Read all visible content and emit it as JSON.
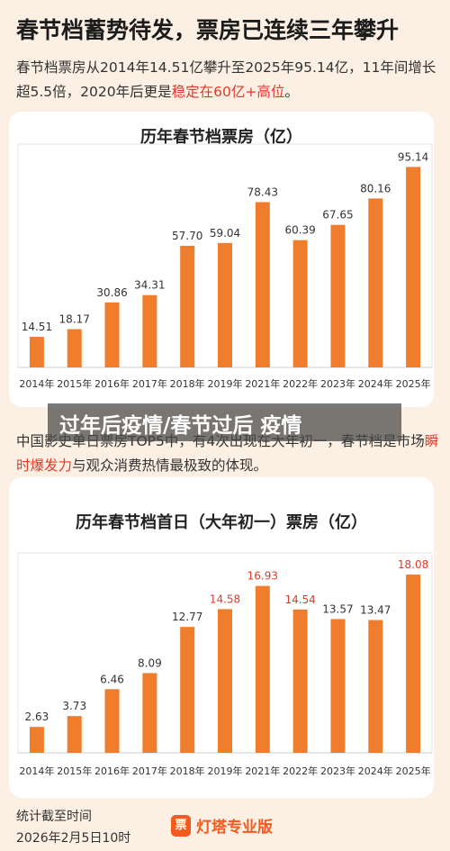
{
  "header": {
    "title": "春节档蓄势待发，票房已连续三年攀升",
    "desc_prefix": "春节档票房从2014年14.51亿攀升至2025年95.14亿，11年间增长超5.5倍，2020年后更是",
    "desc_highlight": "稳定在60亿+高位",
    "desc_suffix": "。"
  },
  "overlay": {
    "text": "过年后疫情/春节过后 疫情"
  },
  "section2": {
    "desc_prefix": "中国影史单日票房TOP5中，有4次出现在大年初一，春节档是市场",
    "desc_highlight": "瞬时爆发力",
    "desc_suffix": "与观众消费热情最极致的体现。"
  },
  "footer": {
    "label": "统计截至时间",
    "time": "2026年2月5日10时",
    "brand_icon": "票",
    "brand": "灯塔专业版"
  },
  "colors": {
    "bar": "#f07d2c",
    "highlight_label": "#e03a2a",
    "label": "#333333",
    "axis": "#cfcfcf"
  },
  "chart_data": [
    {
      "type": "bar",
      "title": "历年春节档票房（亿）",
      "categories": [
        "2014年",
        "2015年",
        "2016年",
        "2017年",
        "2018年",
        "2019年",
        "2021年",
        "2022年",
        "2023年",
        "2024年",
        "2025年"
      ],
      "values": [
        14.51,
        18.17,
        30.86,
        34.31,
        57.7,
        59.04,
        78.43,
        60.39,
        67.65,
        80.16,
        95.14
      ],
      "labels": [
        "14.51",
        "18.17",
        "30.86",
        "34.31",
        "57.70",
        "59.04",
        "78.43",
        "60.39",
        "67.65",
        "80.16",
        "95.14"
      ],
      "highlight": [
        false,
        false,
        false,
        false,
        false,
        false,
        false,
        false,
        false,
        false,
        false
      ],
      "ylim": [
        0,
        100
      ],
      "grid": false
    },
    {
      "type": "bar",
      "title": "历年春节档首日（大年初一）票房（亿）",
      "categories": [
        "2014年",
        "2015年",
        "2016年",
        "2017年",
        "2018年",
        "2019年",
        "2021年",
        "2022年",
        "2023年",
        "2024年",
        "2025年"
      ],
      "values": [
        2.63,
        3.73,
        6.46,
        8.09,
        12.77,
        14.58,
        16.93,
        14.54,
        13.57,
        13.47,
        18.08
      ],
      "labels": [
        "2.63",
        "3.73",
        "6.46",
        "8.09",
        "12.77",
        "14.58",
        "16.93",
        "14.54",
        "13.57",
        "13.47",
        "18.08"
      ],
      "highlight": [
        false,
        false,
        false,
        false,
        false,
        true,
        true,
        true,
        false,
        false,
        true
      ],
      "ylim": [
        0,
        19
      ],
      "grid": false
    }
  ]
}
